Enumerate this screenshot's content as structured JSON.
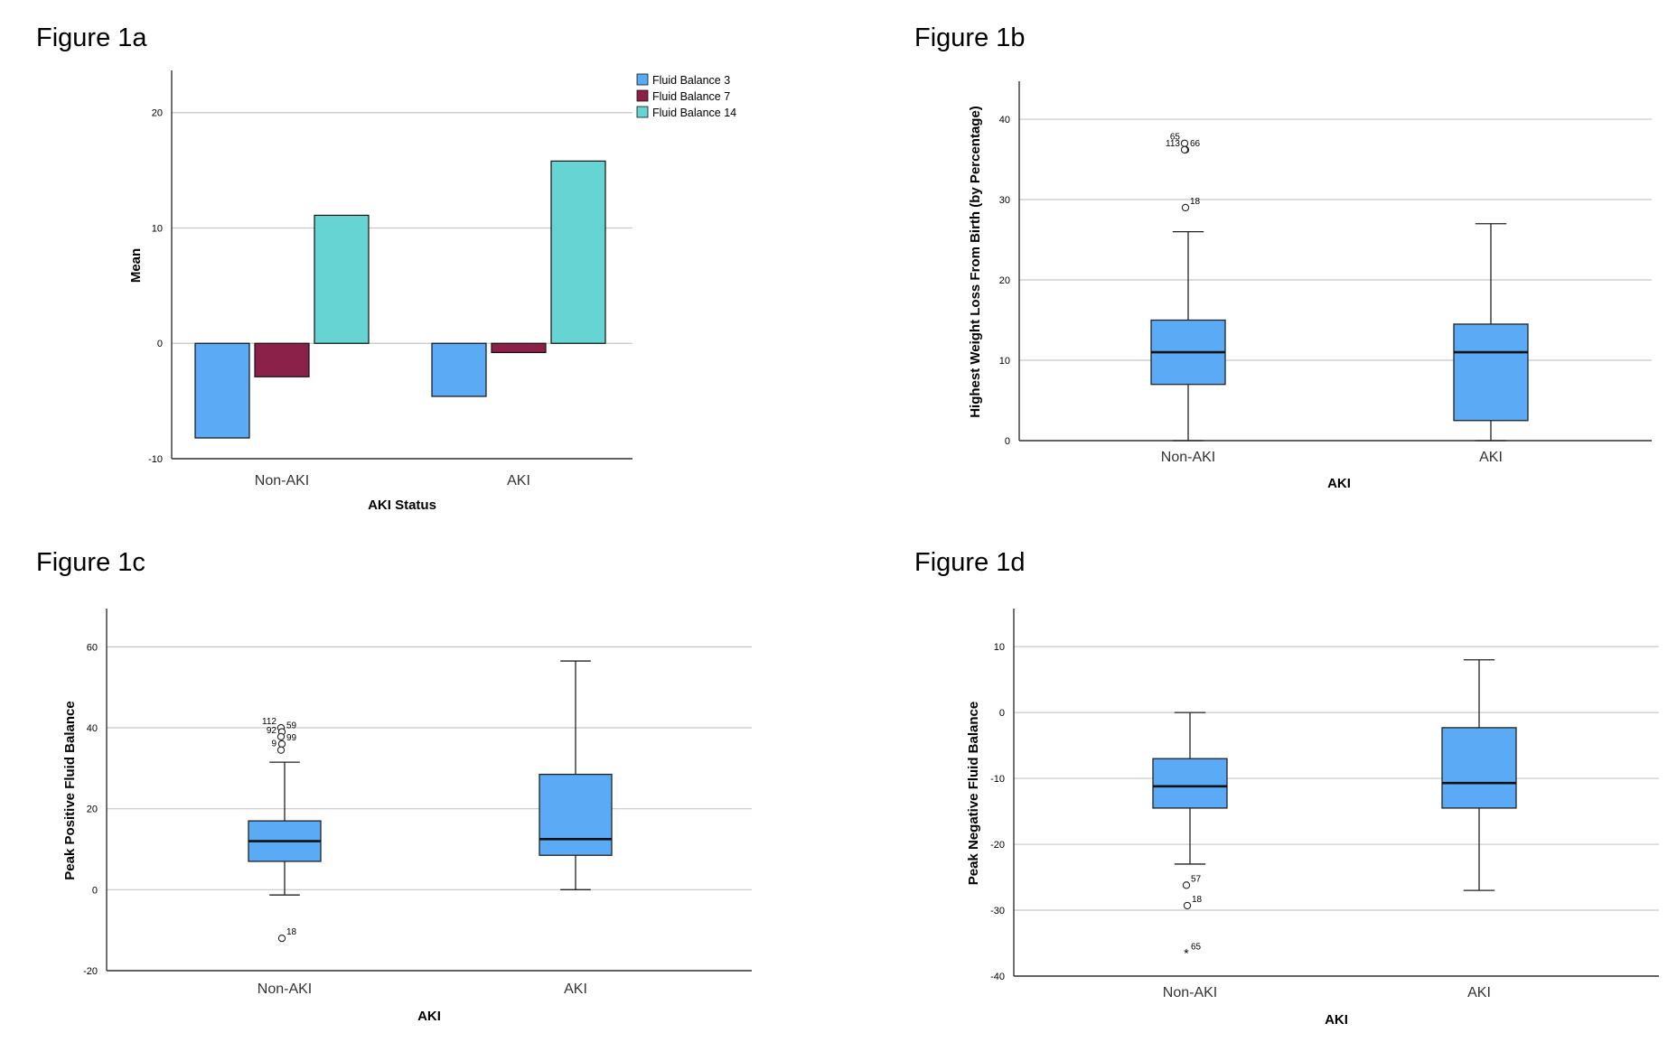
{
  "figures": {
    "a": {
      "title": "Figure 1a"
    },
    "b": {
      "title": "Figure 1b"
    },
    "c": {
      "title": "Figure 1c"
    },
    "d": {
      "title": "Figure 1d"
    }
  },
  "chart_data": [
    {
      "type": "bar",
      "title": "Figure 1a",
      "xlabel": "AKI Status",
      "ylabel": "Mean",
      "categories": [
        "Non-AKI",
        "AKI"
      ],
      "ylim": [
        -10,
        23.5
      ],
      "yticks": [
        -10,
        0,
        10,
        20
      ],
      "grid": true,
      "legend": "top-right",
      "series": [
        {
          "name": "Fluid Balance 3",
          "color": "#5aaaf5",
          "values": [
            -8.2,
            -4.6
          ]
        },
        {
          "name": "Fluid Balance 7",
          "color": "#8b2148",
          "values": [
            -2.9,
            -0.8
          ]
        },
        {
          "name": "Fluid Balance 14",
          "color": "#65d4d2",
          "values": [
            11.1,
            15.8
          ]
        }
      ]
    },
    {
      "type": "boxplot",
      "title": "Figure 1b",
      "xlabel": "AKI",
      "ylabel": "Highest Weight Loss From Birth (by Percentage)",
      "categories": [
        "Non-AKI",
        "AKI"
      ],
      "ylim": [
        0,
        44.5
      ],
      "yticks": [
        0,
        10,
        20,
        30,
        40
      ],
      "grid": true,
      "boxes": [
        {
          "category": "Non-AKI",
          "whisker_low": 0,
          "q1": 7,
          "median": 11,
          "q3": 15,
          "whisker_high": 26,
          "outliers": [
            {
              "id": "65",
              "value": 37,
              "marker": "circle"
            },
            {
              "id": "66",
              "value": 36.2,
              "marker": "circle"
            },
            {
              "id": "113",
              "value": 36.2,
              "marker": "circle"
            },
            {
              "id": "18",
              "value": 29,
              "marker": "circle"
            }
          ]
        },
        {
          "category": "AKI",
          "whisker_low": 0,
          "q1": 2.5,
          "median": 11,
          "q3": 14.5,
          "whisker_high": 27,
          "outliers": []
        }
      ]
    },
    {
      "type": "boxplot",
      "title": "Figure 1c",
      "xlabel": "AKI",
      "ylabel": "Peak Positive Fluid Balance",
      "categories": [
        "Non-AKI",
        "AKI"
      ],
      "ylim": [
        -20,
        69
      ],
      "yticks": [
        -20,
        0,
        20,
        40,
        60
      ],
      "grid": true,
      "boxes": [
        {
          "category": "Non-AKI",
          "whisker_low": -1.3,
          "q1": 7,
          "median": 12,
          "q3": 17,
          "whisker_high": 31.5,
          "outliers": [
            {
              "id": "112",
              "value": 40,
              "marker": "circle"
            },
            {
              "id": "59",
              "value": 39,
              "marker": "circle"
            },
            {
              "id": "92",
              "value": 37.8,
              "marker": "circle"
            },
            {
              "id": "99",
              "value": 36,
              "marker": "circle"
            },
            {
              "id": "9",
              "value": 34.5,
              "marker": "circle"
            },
            {
              "id": "18",
              "value": -12,
              "marker": "circle"
            }
          ]
        },
        {
          "category": "AKI",
          "whisker_low": 0,
          "q1": 8.5,
          "median": 12.5,
          "q3": 28.5,
          "whisker_high": 56.5,
          "outliers": []
        }
      ]
    },
    {
      "type": "boxplot",
      "title": "Figure 1d",
      "xlabel": "AKI",
      "ylabel": "Peak Negative Fluid Balance",
      "categories": [
        "Non-AKI",
        "AKI"
      ],
      "ylim": [
        -40,
        15.5
      ],
      "yticks": [
        -40,
        -30,
        -20,
        -10,
        0,
        10
      ],
      "grid": true,
      "boxes": [
        {
          "category": "Non-AKI",
          "whisker_low": -23,
          "q1": -14.5,
          "median": -11.2,
          "q3": -7,
          "whisker_high": 0,
          "outliers": [
            {
              "id": "57",
              "value": -26.2,
              "marker": "circle"
            },
            {
              "id": "18",
              "value": -29.3,
              "marker": "circle"
            },
            {
              "id": "65",
              "value": -36.5,
              "marker": "star"
            }
          ]
        },
        {
          "category": "AKI",
          "whisker_low": -27,
          "q1": -14.5,
          "median": -10.7,
          "q3": -2.3,
          "whisker_high": 8,
          "outliers": []
        }
      ]
    }
  ]
}
